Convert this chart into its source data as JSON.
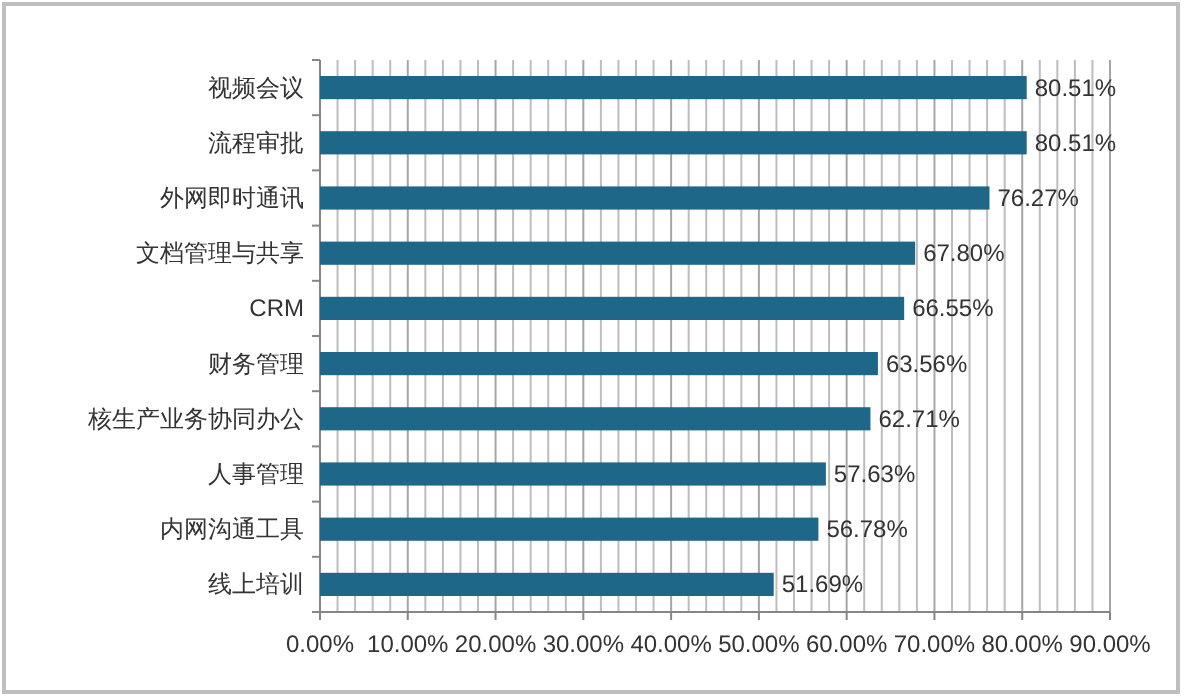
{
  "chart_data": {
    "type": "bar",
    "orientation": "horizontal",
    "categories": [
      "视频会议",
      "流程审批",
      "外网即时通讯",
      "文档管理与共享",
      "CRM",
      "财务管理",
      "核生产业务协同办公",
      "人事管理",
      "内网沟通工具",
      "线上培训"
    ],
    "values": [
      80.51,
      80.51,
      76.27,
      67.8,
      66.55,
      63.56,
      62.71,
      57.63,
      56.78,
      51.69
    ],
    "value_labels": [
      "80.51%",
      "80.51%",
      "76.27%",
      "67.80%",
      "66.55%",
      "63.56%",
      "62.71%",
      "57.63%",
      "56.78%",
      "51.69%"
    ],
    "color": "#1f6788",
    "xlim": [
      0,
      90
    ],
    "xticks": [
      {
        "value": 0,
        "label": "0.00%"
      },
      {
        "value": 10,
        "label": "10.00%"
      },
      {
        "value": 20,
        "label": "20.00%"
      },
      {
        "value": 30,
        "label": "30.00%"
      },
      {
        "value": 40,
        "label": "40.00%"
      },
      {
        "value": 50,
        "label": "50.00%"
      },
      {
        "value": 60,
        "label": "60.00%"
      },
      {
        "value": 70,
        "label": "70.00%"
      },
      {
        "value": 80,
        "label": "80.00%"
      },
      {
        "value": 90,
        "label": "90.00%"
      }
    ],
    "grid": "x"
  }
}
